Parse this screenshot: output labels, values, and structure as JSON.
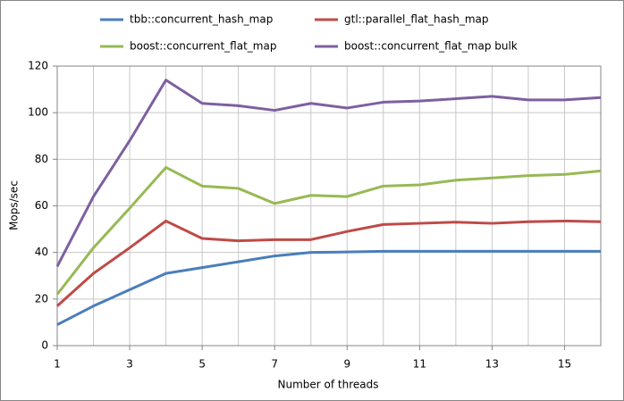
{
  "chart_data": {
    "type": "line",
    "x_label": "Number of threads",
    "y_label": "Mops/sec",
    "x": [
      1,
      2,
      3,
      4,
      5,
      6,
      7,
      8,
      9,
      10,
      11,
      12,
      13,
      14,
      15,
      16
    ],
    "series": [
      {
        "name": "tbb::concurrent_hash_map",
        "color": "#4a7ebb",
        "values": [
          9,
          17,
          24,
          31,
          33.5,
          36,
          38.5,
          40,
          40.2,
          40.5,
          40.5,
          40.5,
          40.5,
          40.5,
          40.5,
          40.5
        ]
      },
      {
        "name": "gtl::parallel_flat_hash_map",
        "color": "#be4b48",
        "values": [
          17,
          31,
          42,
          53.5,
          46,
          45,
          45.5,
          45.5,
          49,
          52,
          52.5,
          53,
          52.5,
          53.2,
          53.5,
          53.2
        ]
      },
      {
        "name": "boost::concurrent_flat_map",
        "color": "#98b954",
        "values": [
          22,
          42,
          59,
          76.5,
          68.5,
          67.5,
          61,
          64.5,
          64,
          68.5,
          69,
          71,
          72,
          73,
          73.5,
          75
        ]
      },
      {
        "name": "boost::concurrent_flat_map bulk",
        "color": "#7d60a0",
        "values": [
          34,
          64,
          88,
          114,
          104,
          103,
          101,
          104,
          102,
          104.5,
          105,
          106,
          107,
          105.5,
          105.5,
          106.5
        ]
      }
    ],
    "xlim": [
      1,
      16
    ],
    "xticks": [
      1,
      3,
      5,
      7,
      9,
      11,
      13,
      15
    ],
    "xgrid": [
      1,
      2,
      3,
      4,
      5,
      6,
      7,
      8,
      9,
      10,
      11,
      12,
      13,
      14,
      15,
      16
    ],
    "ylim": [
      0,
      120
    ],
    "yticks": [
      0,
      20,
      40,
      60,
      80,
      100,
      120
    ],
    "grid": true
  }
}
